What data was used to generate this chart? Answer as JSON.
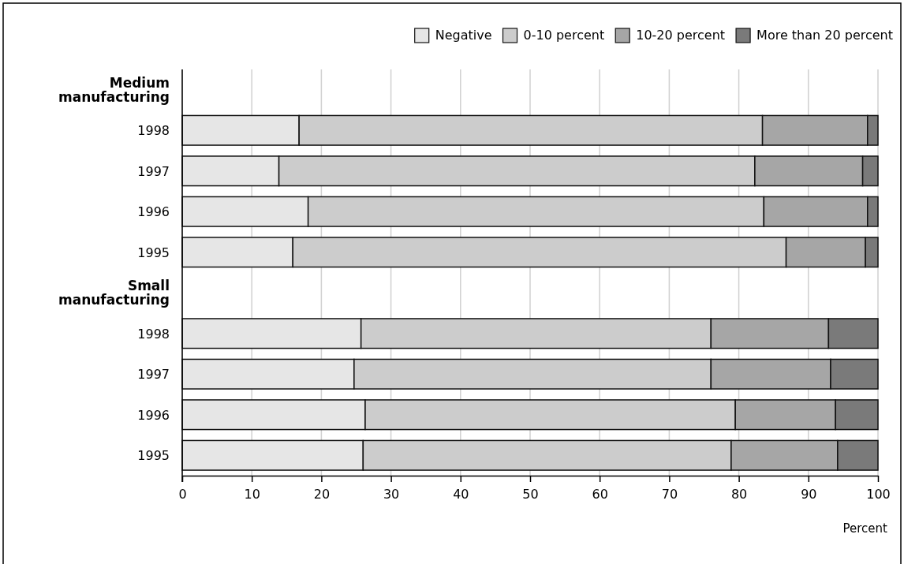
{
  "chart_data": {
    "type": "bar",
    "orientation": "horizontal",
    "stacked": true,
    "categories": [
      "Medium manufacturing",
      "1998",
      "1997",
      "1996",
      "1995",
      "Small manufacturing",
      "1998",
      "1997",
      "1996",
      "1995"
    ],
    "series": [
      {
        "name": "Negative",
        "color": "#e6e6e6",
        "values": [
          null,
          16.8,
          13.9,
          18.1,
          15.9,
          null,
          25.7,
          24.7,
          26.3,
          26.0
        ]
      },
      {
        "name": "0-10 percent",
        "color": "#cccccc",
        "values": [
          null,
          66.6,
          68.4,
          65.5,
          70.9,
          null,
          50.3,
          51.3,
          53.2,
          52.9
        ]
      },
      {
        "name": "10-20 percent",
        "color": "#a6a6a6",
        "values": [
          null,
          15.1,
          15.5,
          14.9,
          11.4,
          null,
          16.9,
          17.2,
          14.4,
          15.3
        ]
      },
      {
        "name": "More than 20 percent",
        "color": "#7a7a7a",
        "values": [
          null,
          1.5,
          2.2,
          1.5,
          1.8,
          null,
          7.1,
          6.8,
          6.1,
          5.8
        ]
      }
    ],
    "xlim": [
      0,
      100
    ],
    "xticks": [
      0,
      10,
      20,
      30,
      40,
      50,
      60,
      70,
      80,
      90,
      100
    ],
    "xlabel": "Percent",
    "grid": "x",
    "legend": "top right"
  }
}
